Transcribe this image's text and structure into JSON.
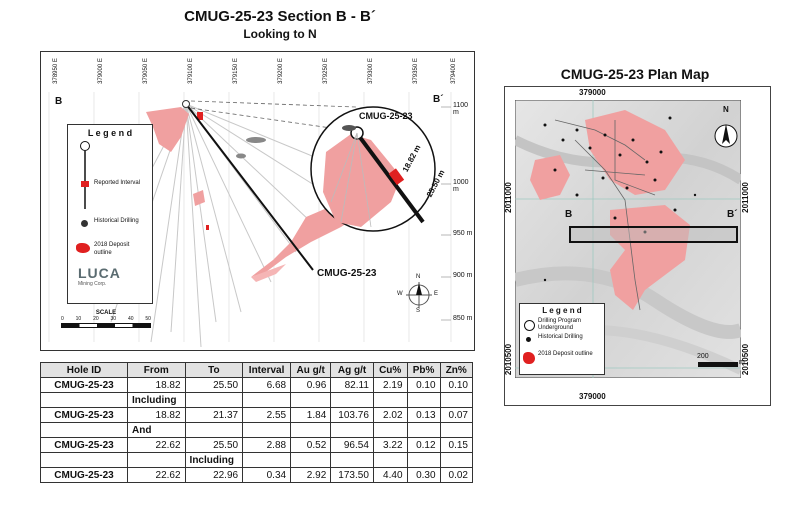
{
  "section": {
    "title": "CMUG-25-23  Section B - B´",
    "subtitle": "Looking to N",
    "eastings": [
      "378950 E",
      "379000 E",
      "379050 E",
      "379100 E",
      "379150 E",
      "379200 E",
      "379250 E",
      "379300 E",
      "379350 E",
      "379400 E"
    ],
    "elevations": [
      "1100 m",
      "1000 m",
      "950 m",
      "900 m",
      "850 m"
    ],
    "label_b": "B",
    "label_b_prime": "B´",
    "hole_label": "CMUG-25-23",
    "inset_hole_label": "CMUG-25-23",
    "inset_from": "18.82 m",
    "inset_to": "25.50 m",
    "compass": {
      "n": "N",
      "s": "S",
      "e": "E",
      "w": "W"
    },
    "legend": {
      "title": "L e g e n d",
      "reported_interval": "Reported Interval",
      "historical_drilling": "Historical Drilling",
      "deposit_outline": "2018 Deposit outline"
    },
    "logo": {
      "text": "LUCA",
      "sub": "Mining Corp."
    },
    "scale": {
      "label": "SCALE",
      "ticks": [
        "0",
        "10",
        "20",
        "30",
        "40",
        "50"
      ]
    }
  },
  "plan": {
    "title": "CMUG-25-23  Plan Map",
    "easting_top": "379000",
    "easting_bottom": "379000",
    "northing_right_top": "2011000",
    "northing_left_top": "2011000",
    "northing_left_bottom": "2010500",
    "northing_right_bottom": "2010500",
    "label_b": "B",
    "label_b_prime": "B´",
    "north": "N",
    "scale_label": "200",
    "scale_unit": "m",
    "legend": {
      "title": "L e g e n d",
      "program": "Drilling Program Underground",
      "historical": "Historical Drilling",
      "deposit": "2018 Deposit outline"
    }
  },
  "table": {
    "headers": [
      "Hole ID",
      "From",
      "To",
      "Interval",
      "Au g/t",
      "Ag g/t",
      "Cu%",
      "Pb%",
      "Zn%"
    ],
    "rows": [
      {
        "type": "data",
        "cells": [
          "CMUG-25-23",
          "18.82",
          "25.50",
          "6.68",
          "0.96",
          "82.11",
          "2.19",
          "0.10",
          "0.10"
        ]
      },
      {
        "type": "label",
        "col": 1,
        "text": "Including"
      },
      {
        "type": "data",
        "cells": [
          "CMUG-25-23",
          "18.82",
          "21.37",
          "2.55",
          "1.84",
          "103.76",
          "2.02",
          "0.13",
          "0.07"
        ]
      },
      {
        "type": "label",
        "col": 1,
        "text": "And"
      },
      {
        "type": "data",
        "cells": [
          "CMUG-25-23",
          "22.62",
          "25.50",
          "2.88",
          "0.52",
          "96.54",
          "3.22",
          "0.12",
          "0.15"
        ]
      },
      {
        "type": "label",
        "col": 2,
        "text": "Including"
      },
      {
        "type": "data",
        "cells": [
          "CMUG-25-23",
          "22.62",
          "22.96",
          "0.34",
          "2.92",
          "173.50",
          "4.40",
          "0.30",
          "0.02"
        ]
      }
    ]
  },
  "colors": {
    "deposit": "#f0a0a0",
    "interval": "#e02020",
    "hole": "#111111",
    "grid": "#9ec9c0"
  }
}
